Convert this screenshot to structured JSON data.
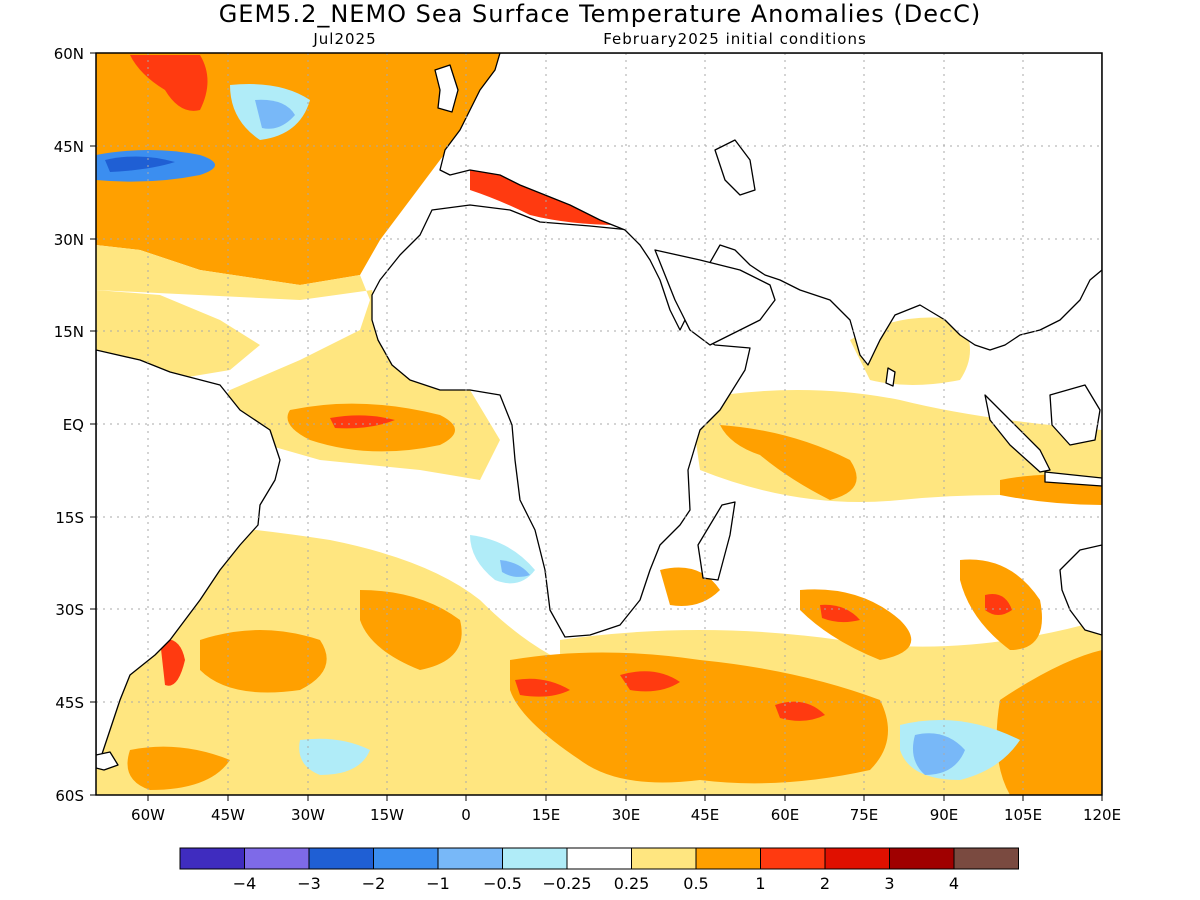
{
  "header": {
    "title": "GEM5.2_NEMO Sea Surface Temperature Anomalies (DecC)",
    "valid_month": "Jul2025",
    "init_conditions": "February2025 initial conditions"
  },
  "axes": {
    "y_labels": [
      "60N",
      "45N",
      "30N",
      "15N",
      "EQ",
      "15S",
      "30S",
      "45S",
      "60S"
    ],
    "x_labels": [
      "60W",
      "45W",
      "30W",
      "15W",
      "0",
      "15E",
      "30E",
      "45E",
      "60E",
      "75E",
      "90E",
      "105E",
      "120E"
    ]
  },
  "colorbar": {
    "colors": [
      "#3f2cbf",
      "#7e6ae8",
      "#1f5fd4",
      "#3b8ef0",
      "#78b8f8",
      "#b0ecf8",
      "#ffffff",
      "#ffe680",
      "#ffa000",
      "#ff3a10",
      "#e01000",
      "#a00000",
      "#7a4a40"
    ],
    "labels": [
      "−4",
      "−3",
      "−2",
      "−1",
      "−0.5",
      "−0.25",
      "0.25",
      "0.5",
      "1",
      "2",
      "3",
      "4"
    ]
  },
  "colors": {
    "land": "#ffffff",
    "coast": "#000000",
    "grid": "#aaaaaa"
  }
}
